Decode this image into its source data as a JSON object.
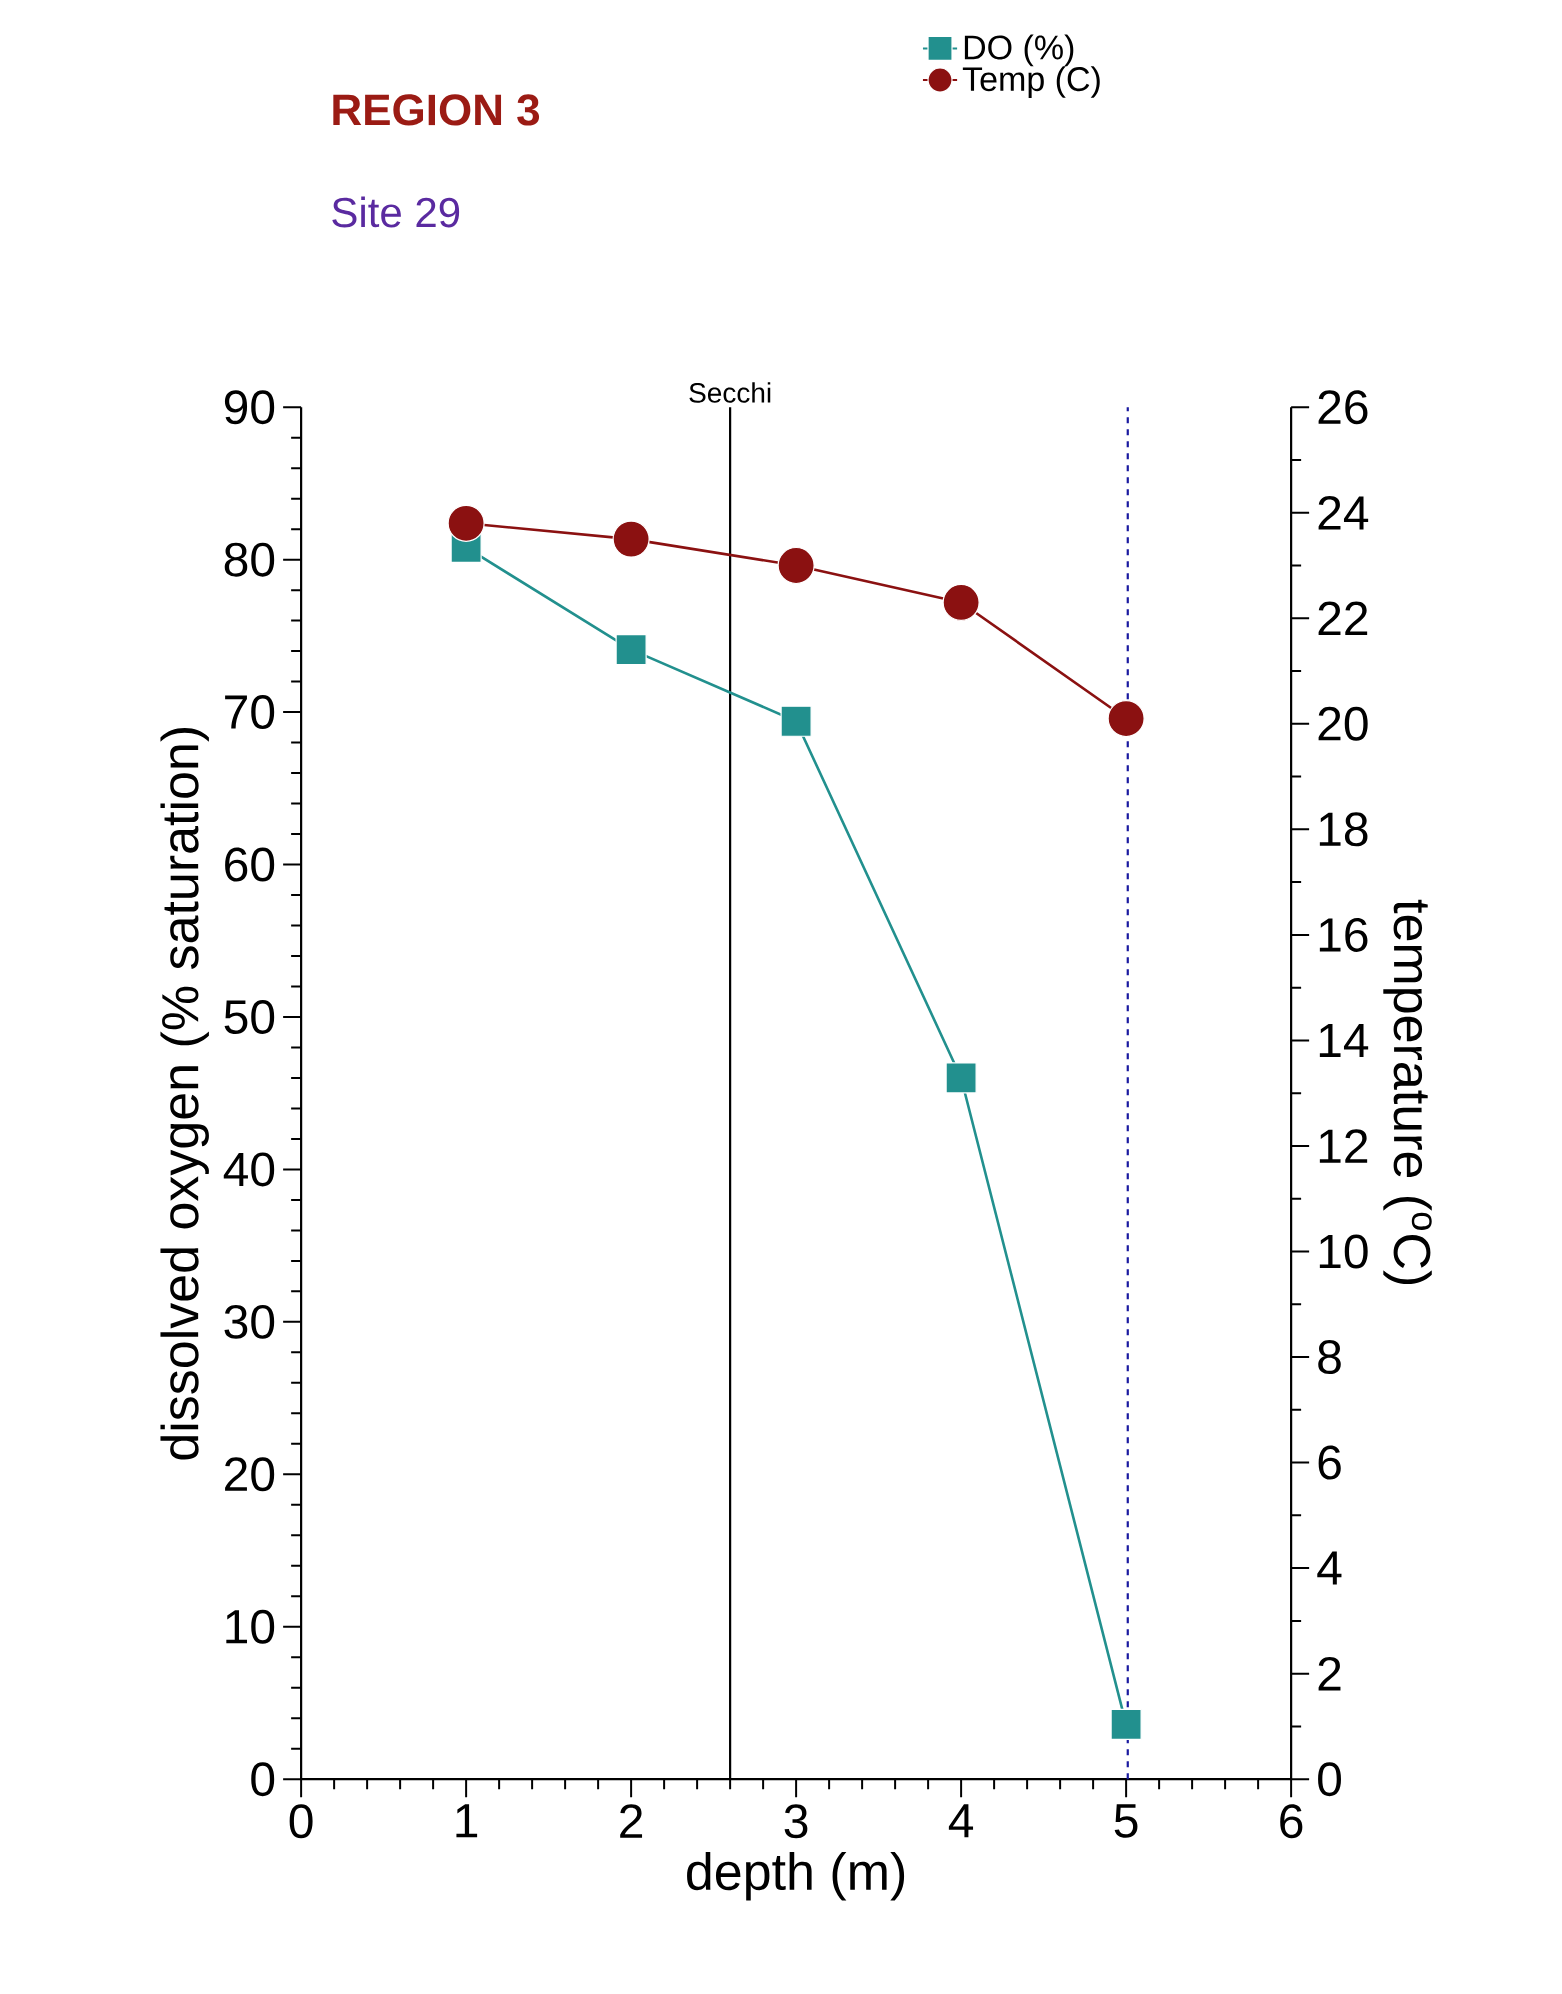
{
  "chart_data": {
    "type": "line",
    "title": "REGION 3",
    "subtitle": "Site 29",
    "xlabel": "depth (m)",
    "ylabel": "dissolved oxygen (% saturation)",
    "y2label": "temperature ($^{o}$C)",
    "x": [
      1,
      2,
      3,
      4,
      5
    ],
    "series": [
      {
        "name": "DO (%)",
        "color": "#22908e",
        "marker": "square",
        "values": [
          80.8,
          74.1,
          69.4,
          46.0,
          3.6
        ]
      },
      {
        "name": "Temp (C)",
        "color": "#8b1111",
        "marker": "circle",
        "axis": "y2",
        "values": [
          23.8,
          23.5,
          23.0,
          22.3,
          20.1
        ]
      }
    ],
    "xlim": [
      0,
      6
    ],
    "xticks": [
      0,
      1,
      2,
      3,
      4,
      5,
      6
    ],
    "ylim": [
      0,
      90
    ],
    "yticks": [
      0,
      10,
      20,
      30,
      40,
      50,
      60,
      70,
      80,
      90
    ],
    "y2lim": [
      0,
      26
    ],
    "y2ticks": [
      0,
      2,
      4,
      6,
      8,
      10,
      12,
      14,
      16,
      18,
      20,
      22,
      24,
      26
    ],
    "ref_lines": [
      {
        "axis": "x",
        "value": 2.6,
        "label": "Secchi",
        "color": "#000000",
        "line_style": "solid"
      },
      {
        "axis": "x",
        "value": 5.01,
        "color": "#1a1aa0",
        "line_style": "dashed"
      }
    ],
    "legend": "top"
  }
}
